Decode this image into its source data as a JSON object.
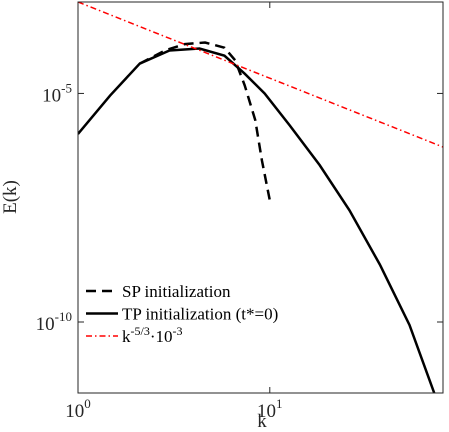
{
  "chart_data": {
    "type": "line",
    "ylabel": "E(k)",
    "xlabel": "k",
    "xscale": "log",
    "yscale": "log",
    "xlim": [
      1,
      80
    ],
    "ylim": [
      2.8e-12,
      0.001
    ],
    "xticks": [
      {
        "value": 1,
        "label": "10",
        "exponent": "0"
      },
      {
        "value": 10,
        "label": "10",
        "exponent": "1"
      }
    ],
    "yticks": [
      {
        "value": 1e-10,
        "label": "10",
        "exponent": "-10"
      },
      {
        "value": 1e-05,
        "label": "10",
        "exponent": "-5"
      }
    ],
    "legend": "lower left",
    "series": [
      {
        "name": [
          {
            "text": "SP initialization"
          }
        ],
        "color": "#000000",
        "dash": "dashed",
        "x": [
          2.1,
          2.84,
          3.6,
          4.6,
          5.8,
          6.6,
          7.4,
          8.4,
          9.1,
          10
        ],
        "values": [
          4.5e-05,
          8.7e-05,
          0.00012,
          0.00013,
          0.0001,
          5.3e-05,
          1.5e-05,
          2.6e-06,
          3.4e-07,
          4.6e-08
        ]
      },
      {
        "name": [
          {
            "text": "TP initialization (t*=0)"
          }
        ],
        "color": "#000000",
        "dash": "solid",
        "x": [
          1,
          1.47,
          2.1,
          3.0,
          4.3,
          5.8,
          7.4,
          9.4,
          12.7,
          18.2,
          26,
          37.5,
          53.5,
          72
        ],
        "values": [
          1.3e-06,
          9e-06,
          4.5e-05,
          8.7e-05,
          9.6e-05,
          6.7e-05,
          2.7e-05,
          1e-05,
          2e-06,
          2.7e-07,
          2.8e-08,
          1.8e-09,
          8.6e-11,
          2.8e-12
        ]
      },
      {
        "name": [
          {
            "text": "k"
          },
          {
            "sup": "-5/3"
          },
          {
            "text": "·10"
          },
          {
            "sup": "-3"
          }
        ],
        "color": "#ff0000",
        "dash": "dashdot",
        "x": [
          1,
          80
        ],
        "values": [
          0.001,
          6.73e-07
        ]
      }
    ]
  }
}
